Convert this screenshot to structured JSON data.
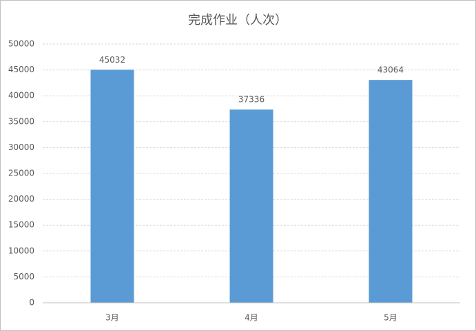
{
  "chart_data": {
    "type": "bar",
    "title": "完成作业（人次）",
    "categories": [
      "3月",
      "4月",
      "5月"
    ],
    "values": [
      45032,
      37336,
      43064
    ],
    "color": "#5b9bd5",
    "ylim": [
      0,
      50000
    ],
    "yticks": [
      0,
      5000,
      10000,
      15000,
      20000,
      25000,
      30000,
      35000,
      40000,
      45000,
      50000
    ],
    "grid": true,
    "data_labels": true
  }
}
